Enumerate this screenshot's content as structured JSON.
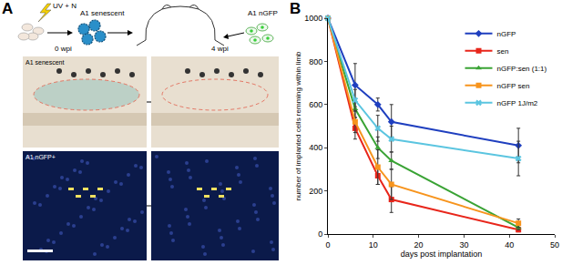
{
  "figure": {
    "panel_a": {
      "label": "A",
      "treatment": "UV + N",
      "implant_left": "A1 senescent",
      "implant_right": "A1 nGFP",
      "time_start": "0 wpi",
      "time_end": "4 wpi",
      "row_labels": [
        "A1 senescent",
        "A1 nGFP+"
      ]
    },
    "panel_b_label": "B"
  },
  "chart_data": {
    "type": "line",
    "xlabel": "days post implantation",
    "ylabel": "number of implanted cells remming within limb",
    "x": [
      0,
      6,
      11,
      14,
      42
    ],
    "xlim": [
      0,
      50
    ],
    "xticks": [
      0,
      10,
      20,
      30,
      40,
      50
    ],
    "ylim": [
      0,
      1000
    ],
    "yticks": [
      0,
      200,
      400,
      600,
      800,
      1000
    ],
    "grid": false,
    "legend": "upper right",
    "series": [
      {
        "name": "nGFP",
        "color": "#1f3fbf",
        "marker": "diamond",
        "line_style": "solid",
        "values": [
          1000,
          690,
          600,
          520,
          410
        ],
        "errors": [
          0,
          100,
          30,
          80,
          80
        ]
      },
      {
        "name": "sen",
        "color": "#e8261b",
        "marker": "square",
        "line_style": "solid",
        "values": [
          1000,
          490,
          270,
          160,
          20
        ],
        "errors": [
          0,
          50,
          40,
          60,
          10
        ]
      },
      {
        "name": "nGFP:sen (1:1)",
        "color": "#3aa335",
        "marker": "triangle-up",
        "line_style": "solid",
        "values": [
          1000,
          580,
          400,
          340,
          30
        ],
        "errors": [
          0,
          40,
          50,
          40,
          10
        ]
      },
      {
        "name": "nGFP sen",
        "color": "#f7941d",
        "marker": "square",
        "line_style": "solid",
        "values": [
          1000,
          520,
          310,
          230,
          50
        ],
        "errors": [
          0,
          50,
          80,
          70,
          20
        ]
      },
      {
        "name": "nGFP 1J/m2",
        "color": "#5bc5e0",
        "marker": "x",
        "line_style": "solid",
        "values": [
          1000,
          620,
          490,
          440,
          350
        ],
        "errors": [
          0,
          50,
          60,
          60,
          80
        ]
      }
    ]
  }
}
